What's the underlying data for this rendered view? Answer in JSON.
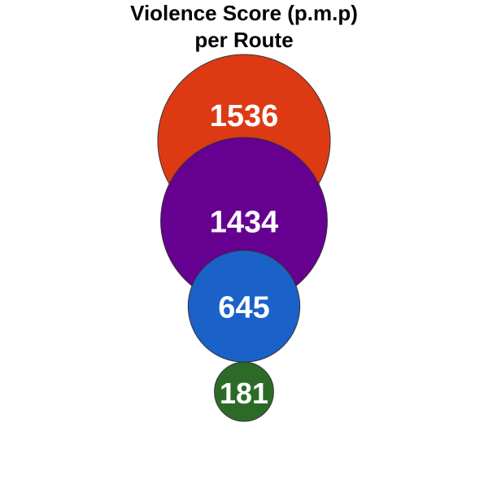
{
  "chart_data": {
    "type": "bubble",
    "title_lines": [
      "Violence Score (p.m.p)",
      "per Route"
    ],
    "values": [
      1536,
      1434,
      645,
      181
    ],
    "labels": [
      "1536",
      "1434",
      "645",
      "181"
    ],
    "colors": [
      "#dd3a14",
      "#660091",
      "#1a62c8",
      "#2c6b27"
    ],
    "stroke_color": "#333333"
  }
}
